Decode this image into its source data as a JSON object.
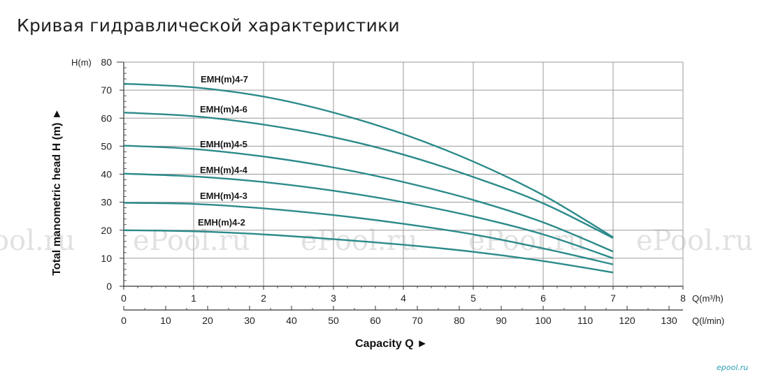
{
  "page_title": "Кривая гидравлической характеристики",
  "watermark": "ePool.ru",
  "logo_text": "epool.ru",
  "colors": {
    "curve": "#2c8a8a",
    "grid": "#9a9a9a",
    "axis": "#333333"
  },
  "chart_data": {
    "type": "line",
    "title": "",
    "ylabel": "Total manometric head H (m)",
    "ylabel_arrow": "►",
    "y_unit": "H(m)",
    "ylim": [
      0,
      80
    ],
    "yticks": [
      "0",
      "10",
      "20",
      "30",
      "40",
      "50",
      "60",
      "70",
      "80"
    ],
    "xlabel": "Capacity Q",
    "xlabel_arrow": "►",
    "x_unit": "Q(m³/h)",
    "xlim": [
      0,
      8
    ],
    "xticks": [
      "0",
      "1",
      "2",
      "3",
      "4",
      "5",
      "6",
      "7",
      "8"
    ],
    "x2_unit": "Q(l/min)",
    "x2lim": [
      0,
      133.333
    ],
    "x2ticks": [
      "0",
      "10",
      "20",
      "30",
      "40",
      "50",
      "60",
      "70",
      "80",
      "90",
      "100",
      "110",
      "120",
      "130"
    ],
    "grid": true,
    "series": [
      {
        "name": "EMH(m)4-7",
        "x": [
          0,
          1,
          2,
          3,
          4,
          5,
          6,
          7
        ],
        "y": [
          72.3,
          71,
          67.7,
          62,
          54.3,
          44.5,
          32.5,
          17.5
        ]
      },
      {
        "name": "EMH(m)4-6",
        "x": [
          0,
          1,
          2,
          3,
          4,
          5,
          6,
          7
        ],
        "y": [
          62,
          60.7,
          57.7,
          53.2,
          47,
          39,
          29.6,
          17.2
        ]
      },
      {
        "name": "EMH(m)4-5",
        "x": [
          0,
          1,
          2,
          3,
          4,
          5,
          6,
          7
        ],
        "y": [
          50.2,
          49,
          46.3,
          42.4,
          37.2,
          30.8,
          22.8,
          12.4
        ]
      },
      {
        "name": "EMH(m)4-4",
        "x": [
          0,
          1,
          2,
          3,
          4,
          5,
          6,
          7
        ],
        "y": [
          40.2,
          39.2,
          37.2,
          34.1,
          30,
          24.9,
          18.5,
          10
        ]
      },
      {
        "name": "EMH(m)4-3",
        "x": [
          0,
          1,
          2,
          3,
          4,
          5,
          6,
          7
        ],
        "y": [
          29.8,
          29.4,
          27.8,
          25.4,
          22.3,
          18.5,
          13.5,
          7.8
        ]
      },
      {
        "name": "EMH(m)4-2",
        "x": [
          0,
          1,
          2,
          3,
          4,
          5,
          6,
          7
        ],
        "y": [
          20,
          19.6,
          18.5,
          16.8,
          14.8,
          12.3,
          9,
          4.9
        ]
      }
    ]
  }
}
